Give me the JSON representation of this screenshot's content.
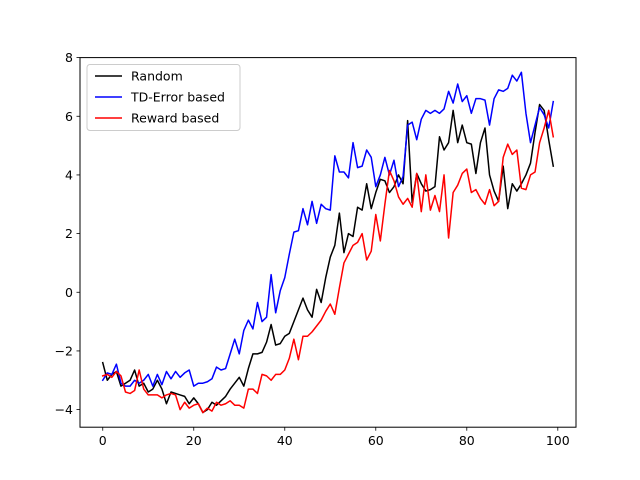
{
  "chart_data": {
    "type": "line",
    "title": "",
    "xlabel": "",
    "ylabel": "",
    "xlim": [
      -5,
      104
    ],
    "ylim": [
      -4.6,
      8.0
    ],
    "x_ticks": [
      0,
      20,
      40,
      60,
      80,
      100
    ],
    "y_ticks": [
      -4,
      -2,
      0,
      2,
      4,
      6,
      8
    ],
    "grid": false,
    "legend_position": "upper-left",
    "series": [
      {
        "name": "Random",
        "color": "#000000",
        "values": [
          -2.4,
          -3.0,
          -2.8,
          -2.7,
          -3.2,
          -3.1,
          -3.0,
          -2.65,
          -3.2,
          -3.1,
          -3.4,
          -3.3,
          -3.0,
          -3.3,
          -3.8,
          -3.4,
          -3.45,
          -3.5,
          -3.55,
          -3.8,
          -3.6,
          -3.8,
          -4.1,
          -4.0,
          -3.75,
          -3.85,
          -3.7,
          -3.55,
          -3.3,
          -3.1,
          -2.9,
          -3.2,
          -2.6,
          -2.1,
          -2.1,
          -2.05,
          -1.7,
          -1.1,
          -1.8,
          -1.75,
          -1.5,
          -1.4,
          -1.0,
          -0.6,
          -0.2,
          -0.6,
          -0.85,
          0.1,
          -0.35,
          0.5,
          1.2,
          1.6,
          2.7,
          1.35,
          2.0,
          1.9,
          2.9,
          2.8,
          3.7,
          2.85,
          3.4,
          3.85,
          3.8,
          3.4,
          3.6,
          4.0,
          3.7,
          5.85,
          3.05,
          4.05,
          3.7,
          3.45,
          3.5,
          3.6,
          5.3,
          4.85,
          5.1,
          6.2,
          5.1,
          5.7,
          5.1,
          5.05,
          4.05,
          5.1,
          5.6,
          4.0,
          3.45,
          3.1,
          4.3,
          2.85,
          3.7,
          3.45,
          3.7,
          4.0,
          4.4,
          5.45,
          6.4,
          6.2,
          5.2,
          4.3
        ]
      },
      {
        "name": "TD-Error based",
        "color": "#0000ff",
        "values": [
          -3.0,
          -2.75,
          -2.8,
          -2.45,
          -3.1,
          -3.2,
          -3.2,
          -3.0,
          -3.1,
          -3.0,
          -2.8,
          -3.2,
          -2.8,
          -3.15,
          -2.7,
          -2.95,
          -2.7,
          -2.9,
          -2.75,
          -2.65,
          -3.2,
          -3.1,
          -3.1,
          -3.05,
          -2.95,
          -2.55,
          -2.65,
          -2.6,
          -2.1,
          -1.6,
          -2.1,
          -1.3,
          -0.95,
          -1.25,
          -0.35,
          -1.0,
          -0.85,
          0.6,
          -0.7,
          0.05,
          0.5,
          1.3,
          2.05,
          2.1,
          2.85,
          2.3,
          3.1,
          2.35,
          3.0,
          2.85,
          2.8,
          4.65,
          4.1,
          4.1,
          3.9,
          5.1,
          4.25,
          4.3,
          4.85,
          4.6,
          3.6,
          4.0,
          4.6,
          4.0,
          4.5,
          3.6,
          3.95,
          5.7,
          5.8,
          5.2,
          5.9,
          6.2,
          6.1,
          6.2,
          6.1,
          6.25,
          6.85,
          6.45,
          7.1,
          6.5,
          6.7,
          6.1,
          6.6,
          6.6,
          6.55,
          5.7,
          6.6,
          6.9,
          6.85,
          6.95,
          7.4,
          7.2,
          7.5,
          6.1,
          5.1,
          5.7,
          6.3,
          6.05,
          5.6,
          6.5
        ]
      },
      {
        "name": "Reward based",
        "color": "#ff0000",
        "values": [
          -2.85,
          -2.8,
          -2.9,
          -2.7,
          -2.85,
          -3.4,
          -3.45,
          -3.35,
          -2.65,
          -3.3,
          -3.5,
          -3.5,
          -3.5,
          -3.6,
          -3.5,
          -3.45,
          -3.5,
          -4.0,
          -3.75,
          -3.95,
          -3.85,
          -3.8,
          -4.1,
          -3.95,
          -4.05,
          -3.75,
          -3.85,
          -3.8,
          -3.7,
          -3.85,
          -3.85,
          -3.95,
          -3.3,
          -3.3,
          -3.45,
          -2.8,
          -2.85,
          -3.0,
          -2.8,
          -2.8,
          -2.65,
          -2.25,
          -1.6,
          -2.3,
          -1.5,
          -1.5,
          -1.35,
          -1.15,
          -0.95,
          -0.65,
          -0.4,
          -0.75,
          0.15,
          1.0,
          1.3,
          1.6,
          1.7,
          2.0,
          1.1,
          1.4,
          2.65,
          1.75,
          3.0,
          4.15,
          3.8,
          3.25,
          3.0,
          3.2,
          2.9,
          4.05,
          2.75,
          4.0,
          2.8,
          3.3,
          2.75,
          4.0,
          1.85,
          3.4,
          3.65,
          4.05,
          4.2,
          3.4,
          3.5,
          3.2,
          3.0,
          3.5,
          2.95,
          3.1,
          4.6,
          5.05,
          4.7,
          4.85,
          3.55,
          3.5,
          4.0,
          4.1,
          5.1,
          5.6,
          6.2,
          5.3
        ]
      }
    ]
  }
}
